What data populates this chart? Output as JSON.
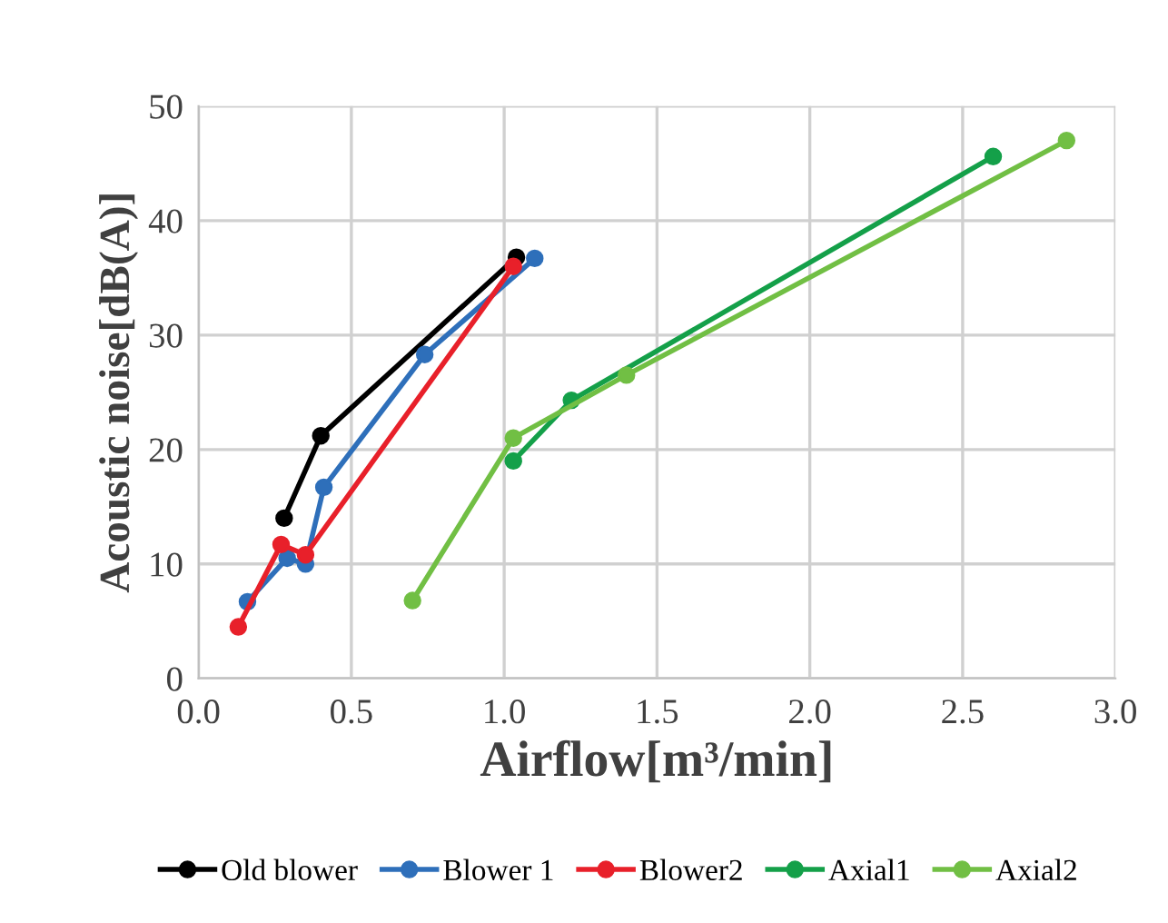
{
  "chart_data": {
    "type": "line",
    "xlabel": "Airflow[m³/min]",
    "ylabel": "Acoustic noise[dB(A)]",
    "xlim": [
      0,
      3
    ],
    "ylim": [
      0,
      50
    ],
    "xticks": [
      {
        "value": 0,
        "label": "0.0"
      },
      {
        "value": 0.5,
        "label": "0.5"
      },
      {
        "value": 1,
        "label": "1.0"
      },
      {
        "value": 1.5,
        "label": "1.5"
      },
      {
        "value": 2,
        "label": "2.0"
      },
      {
        "value": 2.5,
        "label": "2.5"
      },
      {
        "value": 3,
        "label": "3.0"
      }
    ],
    "yticks": [
      0,
      10,
      20,
      30,
      40,
      50
    ],
    "grid": true,
    "legend": "bottom",
    "marker": "circle",
    "line_style": "solid",
    "series": [
      {
        "name": "Old blower",
        "color": "#000000",
        "x": [
          0.28,
          0.4,
          1.04
        ],
        "values": [
          14.0,
          21.2,
          36.8
        ]
      },
      {
        "name": "Blower 1",
        "color": "#2e6fba",
        "x": [
          0.16,
          0.29,
          0.35,
          0.41,
          0.74,
          1.1
        ],
        "values": [
          6.7,
          10.5,
          10.0,
          16.7,
          28.3,
          36.7
        ]
      },
      {
        "name": "Blower2",
        "color": "#e8202a",
        "x": [
          0.13,
          0.27,
          0.35,
          1.03
        ],
        "values": [
          4.5,
          11.7,
          10.8,
          36.0
        ]
      },
      {
        "name": "Axial1",
        "color": "#14a049",
        "x": [
          1.03,
          1.22,
          2.6
        ],
        "values": [
          19.0,
          24.3,
          45.6
        ]
      },
      {
        "name": "Axial2",
        "color": "#71bf44",
        "x": [
          0.7,
          1.03,
          1.4,
          2.84
        ],
        "values": [
          6.8,
          21.0,
          26.5,
          47.0
        ]
      }
    ]
  }
}
